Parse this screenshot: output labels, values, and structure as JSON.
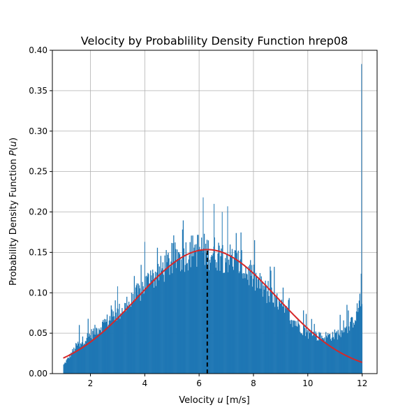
{
  "chart_data": {
    "type": "bar",
    "title": "Velocity by Probablility Density Function hrep08",
    "xlabel_prefix": "Velocity ",
    "xlabel_var": "u",
    "xlabel_suffix": " [m/s]",
    "ylabel_prefix": "Probability Density Function ",
    "ylabel_var": "P",
    "ylabel_open": "(",
    "ylabel_arg": "u",
    "ylabel_close": ")",
    "xlim": [
      0.6,
      12.55
    ],
    "ylim": [
      0.0,
      0.4
    ],
    "xticks": [
      2,
      4,
      6,
      8,
      10,
      12
    ],
    "xtick_labels": [
      "2",
      "4",
      "6",
      "8",
      "10",
      "12"
    ],
    "yticks": [
      0.0,
      0.05,
      0.1,
      0.15,
      0.2,
      0.25,
      0.3,
      0.35,
      0.4
    ],
    "ytick_labels": [
      "0.00",
      "0.05",
      "0.10",
      "0.15",
      "0.20",
      "0.25",
      "0.30",
      "0.35",
      "0.40"
    ],
    "grid": true,
    "histogram": {
      "bin_start": 1.0,
      "bin_end": 12.0,
      "color": "#1f77b4",
      "x": [
        1.0,
        1.5,
        2.0,
        2.5,
        3.0,
        3.5,
        4.0,
        4.5,
        5.0,
        5.5,
        6.0,
        6.3,
        6.5,
        7.0,
        7.5,
        8.0,
        8.5,
        9.0,
        9.5,
        10.0,
        10.5,
        11.0,
        11.5,
        11.8,
        11.9,
        12.0
      ],
      "density": [
        0.01,
        0.035,
        0.048,
        0.062,
        0.075,
        0.088,
        0.11,
        0.125,
        0.14,
        0.148,
        0.155,
        0.15,
        0.15,
        0.145,
        0.135,
        0.118,
        0.1,
        0.082,
        0.065,
        0.05,
        0.045,
        0.048,
        0.055,
        0.075,
        0.09,
        0.095
      ],
      "spikes": [
        {
          "x": 6.15,
          "y": 0.218
        },
        {
          "x": 6.55,
          "y": 0.21
        },
        {
          "x": 7.05,
          "y": 0.207
        },
        {
          "x": 6.85,
          "y": 0.2
        },
        {
          "x": 4.0,
          "y": 0.163
        },
        {
          "x": 3.0,
          "y": 0.108
        },
        {
          "x": 11.98,
          "y": 0.383
        }
      ]
    },
    "fit_curve": {
      "color": "#d62728",
      "mean": 6.3,
      "sd": 2.6,
      "x_range": [
        1.0,
        12.0
      ]
    },
    "mean_line": {
      "x": 6.3,
      "y_top": 0.153,
      "color": "#000000",
      "style": "dashed"
    }
  }
}
